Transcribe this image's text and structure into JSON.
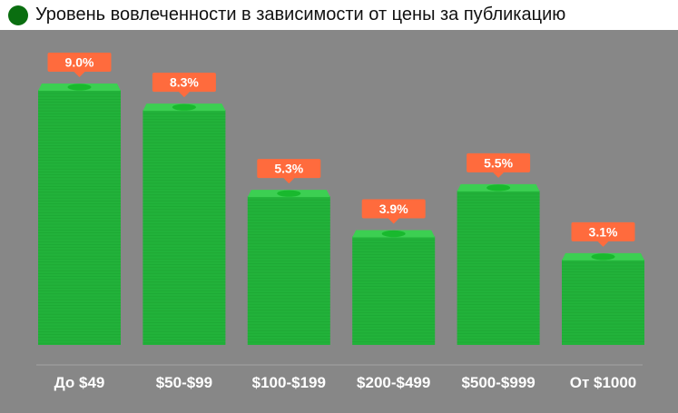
{
  "header": {
    "title": "Уровень вовлеченности в зависимости от цены за публикацию"
  },
  "colors": {
    "background": "#878787",
    "bar": "#22b23a",
    "bar_stripe": "#1a9a2e",
    "bill_top": "#3ccf52",
    "bill_center": "#19b92e",
    "label_bg": "#ff6b3d",
    "label_text": "#ffffff",
    "axis": "#a3a3a3",
    "legend_dot": "#0a6e10"
  },
  "chart_data": {
    "type": "bar",
    "title": "Уровень вовлеченности в зависимости от цены за публикацию",
    "categories": [
      "До $49",
      "$50-$99",
      "$100-$199",
      "$200-$499",
      "$500-$999",
      "От $1000"
    ],
    "values": [
      9.0,
      8.3,
      5.3,
      3.9,
      5.5,
      3.1
    ],
    "value_labels": [
      "9.0%",
      "8.3%",
      "5.3%",
      "3.9%",
      "5.5%",
      "3.1%"
    ],
    "unit": "%",
    "ylim": [
      0,
      9.0
    ],
    "grid": false,
    "legend": "none"
  }
}
